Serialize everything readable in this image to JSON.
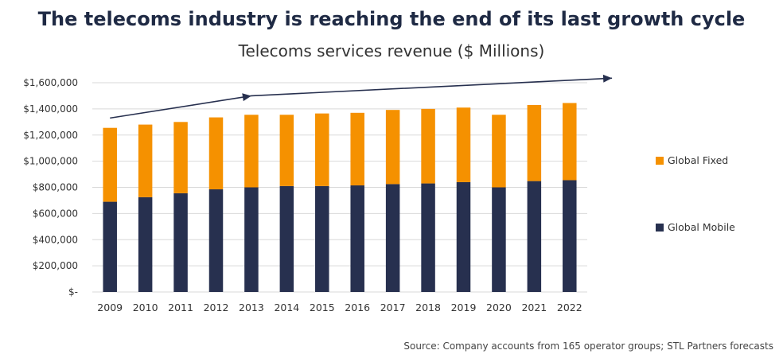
{
  "headline": "The telecoms industry is reaching the end of its last growth cycle",
  "source": "Source: Company accounts from 165 operator groups; STL Partners forecasts",
  "colors": {
    "fixed": "#f59100",
    "mobile": "#27304f",
    "arrow": "#27304f",
    "grid": "#d9d9d9"
  },
  "chart_data": {
    "type": "bar",
    "stacked": true,
    "title": "Telecoms services revenue ($ Millions)",
    "xlabel": "",
    "ylabel": "",
    "ylim": [
      0,
      1600000
    ],
    "grid": true,
    "legend_position": "right",
    "categories": [
      "2009",
      "2010",
      "2011",
      "2012",
      "2013",
      "2014",
      "2015",
      "2016",
      "2017",
      "2018",
      "2019",
      "2020",
      "2021",
      "2022"
    ],
    "yticks": [
      0,
      200000,
      400000,
      600000,
      800000,
      1000000,
      1200000,
      1400000,
      1600000
    ],
    "ytick_labels": [
      "$-",
      "$200,000",
      "$400,000",
      "$600,000",
      "$800,000",
      "$1,000,000",
      "$1,200,000",
      "$1,400,000",
      "$1,600,000"
    ],
    "series": [
      {
        "name": "Global Mobile",
        "color": "#27304f",
        "values": [
          690000,
          725000,
          755000,
          785000,
          800000,
          810000,
          810000,
          815000,
          825000,
          830000,
          840000,
          800000,
          848000,
          855000
        ]
      },
      {
        "name": "Global Fixed",
        "color": "#f59100",
        "values": [
          565000,
          555000,
          545000,
          550000,
          555000,
          545000,
          555000,
          555000,
          567000,
          570000,
          570000,
          555000,
          582000,
          590000
        ]
      }
    ],
    "legend_order": [
      "Global Fixed",
      "Global Mobile"
    ],
    "trend_arrow": {
      "points": [
        [
          2009,
          1330000
        ],
        [
          2013,
          1500000
        ],
        [
          2023.2,
          1635000
        ]
      ]
    }
  }
}
